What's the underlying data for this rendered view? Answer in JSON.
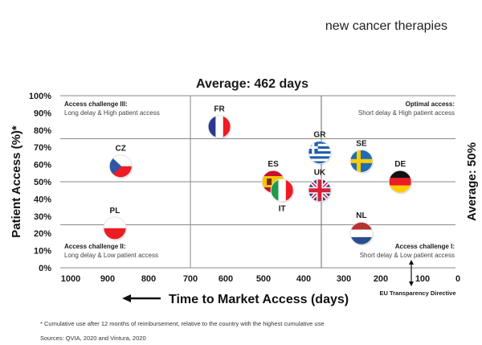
{
  "header": {
    "subtitle": "new cancer therapies"
  },
  "chart_data": {
    "type": "scatter",
    "title": "Average: 462 days",
    "xlabel": "Time to Market Access (days)",
    "ylabel": "Patient Access (%)*",
    "right_label": "Average: 50%",
    "xlim": [
      1000,
      0
    ],
    "ylim": [
      0,
      100
    ],
    "x_ticks": [
      "1000",
      "900",
      "800",
      "700",
      "600",
      "500",
      "400",
      "300",
      "200",
      "100",
      "0"
    ],
    "y_ticks": [
      "0%",
      "10%",
      "20%",
      "30%",
      "40%",
      "50%",
      "60%",
      "70%",
      "80%",
      "90%",
      "100%"
    ],
    "averages": {
      "x_days": 462,
      "y_percent": 50
    },
    "quadrants": [
      {
        "title": "Access challenge III:",
        "subtitle": "Long delay & High patient access",
        "position": "top-left"
      },
      {
        "title": "Optimal access:",
        "subtitle": "Short delay & High patient access",
        "position": "top-right"
      },
      {
        "title": "Access challenge II:",
        "subtitle": "Long delay & Low patient access",
        "position": "bottom-left"
      },
      {
        "title": "Access challenge I:",
        "subtitle": "Short delay & Low patient access",
        "position": "bottom-right"
      }
    ],
    "annotation": {
      "text": "EU Transparency Directive",
      "x_days": 120
    },
    "points": [
      {
        "country": "FR",
        "x": 616,
        "y": 82,
        "flag": "fr",
        "label_pos": "above"
      },
      {
        "country": "CZ",
        "x": 871,
        "y": 59,
        "flag": "cz",
        "label_pos": "above"
      },
      {
        "country": "PL",
        "x": 886,
        "y": 23,
        "flag": "pl",
        "label_pos": "above"
      },
      {
        "country": "ES",
        "x": 477,
        "y": 50,
        "flag": "es",
        "label_pos": "above"
      },
      {
        "country": "IT",
        "x": 454,
        "y": 45,
        "flag": "it",
        "label_pos": "below"
      },
      {
        "country": "GR",
        "x": 357,
        "y": 67,
        "flag": "gr",
        "label_pos": "above"
      },
      {
        "country": "UK",
        "x": 357,
        "y": 45,
        "flag": "uk",
        "label_pos": "above"
      },
      {
        "country": "SE",
        "x": 249,
        "y": 62,
        "flag": "se",
        "label_pos": "above"
      },
      {
        "country": "DE",
        "x": 149,
        "y": 50,
        "flag": "de",
        "label_pos": "above"
      },
      {
        "country": "NL",
        "x": 249,
        "y": 20,
        "flag": "nl",
        "label_pos": "above"
      }
    ],
    "arrow_icon": "left-arrow-icon"
  },
  "footer": {
    "footnote": "* Cumulative use after 12 months of reimbursement, relative to the country with the highest cumulative use",
    "sources": "Sources: QVIA, 2020 and Vintura, 2020"
  },
  "colors": {
    "grid": "#8a8a8a",
    "text": "#1a1a1a"
  }
}
